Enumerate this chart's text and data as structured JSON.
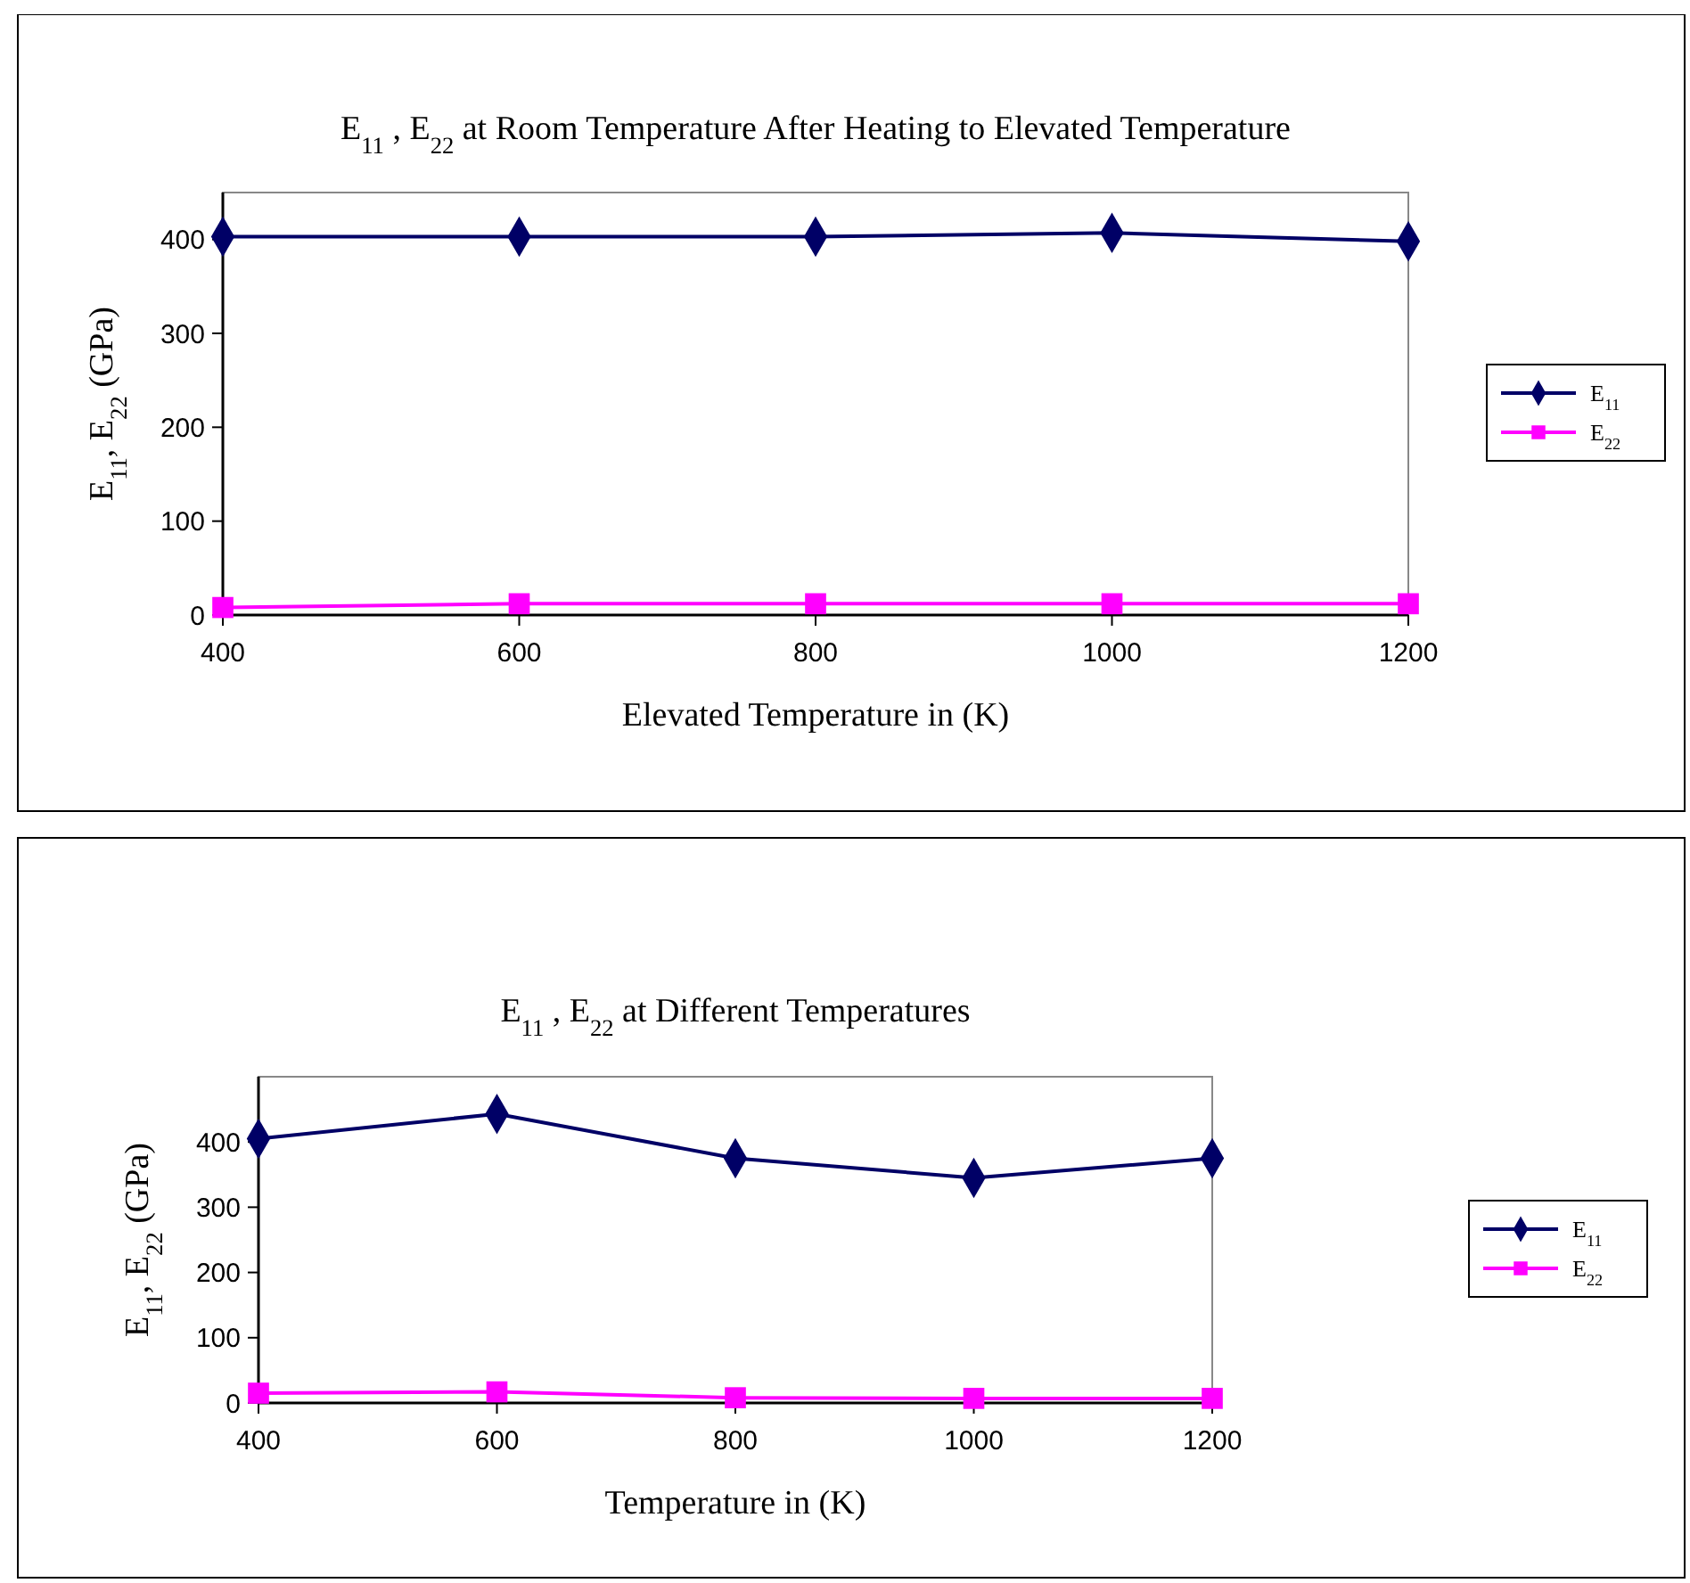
{
  "chart_data": [
    {
      "type": "line",
      "title": "E$_{11}$ , E$_{22}$ at Room Temperature After Heating to Elevated  Temperature",
      "xlabel": "Elevated Temperature in (K)",
      "ylabel": "E$_{11}$, E$_{22}$ (GPa)",
      "x": [
        400,
        600,
        800,
        1000,
        1200
      ],
      "xlim": [
        400,
        1200
      ],
      "xticks": [
        400,
        600,
        800,
        1000,
        1200
      ],
      "ylim": [
        0,
        450
      ],
      "yticks": [
        0,
        100,
        200,
        300,
        400
      ],
      "legend": "right",
      "grid": false,
      "series": [
        {
          "name": "E$_{11}$",
          "color": "#000066",
          "marker": "diamond",
          "values": [
            403,
            403,
            403,
            407,
            398
          ]
        },
        {
          "name": "E$_{22}$",
          "color": "#ff00ff",
          "marker": "square",
          "values": [
            8,
            12,
            12,
            12,
            12
          ]
        }
      ]
    },
    {
      "type": "line",
      "title": "E$_{11}$ , E$_{22}$ at Different  Temperatures",
      "xlabel": "Temperature in (K)",
      "ylabel": "E$_{11}$, E$_{22}$ (GPa)",
      "x": [
        400,
        600,
        800,
        1000,
        1200
      ],
      "xlim": [
        400,
        1200
      ],
      "xticks": [
        400,
        600,
        800,
        1000,
        1200
      ],
      "ylim": [
        0,
        500
      ],
      "yticks": [
        0,
        100,
        200,
        300,
        400
      ],
      "legend": "right",
      "grid": false,
      "series": [
        {
          "name": "E$_{11}$",
          "color": "#000066",
          "marker": "diamond",
          "values": [
            405,
            443,
            375,
            345,
            375
          ]
        },
        {
          "name": "E$_{22}$",
          "color": "#ff00ff",
          "marker": "square",
          "values": [
            15,
            17,
            8,
            7,
            7
          ]
        }
      ]
    }
  ]
}
